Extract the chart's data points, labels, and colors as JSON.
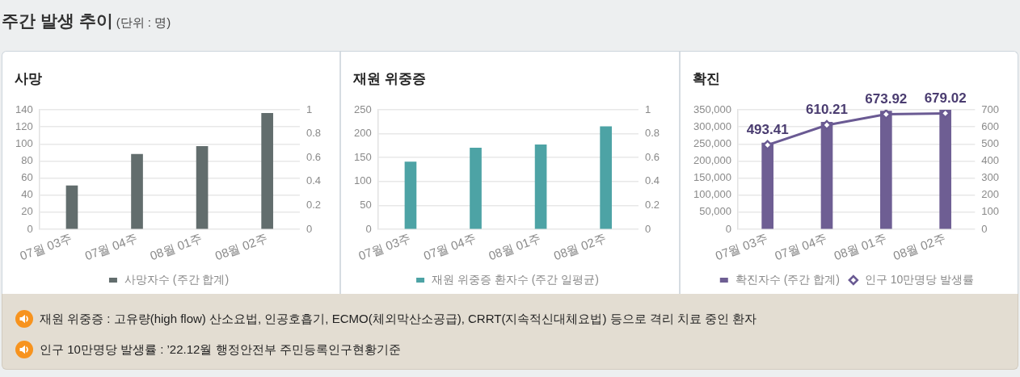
{
  "chart_data": [
    {
      "type": "other",
      "title": "주간 발생 추이",
      "subtitle": "(단위 : 명)"
    },
    {
      "type": "bar",
      "title": "사망",
      "categories": [
        "07월 03주",
        "07월 04주",
        "08월 01주",
        "08월 02주"
      ],
      "series": [
        {
          "name": "사망자수 (주간 합계)",
          "color": "#626d6d",
          "values": [
            51,
            88,
            97,
            136
          ]
        }
      ],
      "ylim": [
        0,
        140
      ],
      "yticks": [
        0,
        20,
        40,
        60,
        80,
        100,
        120,
        140
      ],
      "y2lim": [
        0,
        1
      ],
      "y2ticks": [
        0,
        0.2,
        0.4,
        0.6,
        0.8,
        1
      ],
      "grid": "y",
      "legend": "bottom"
    },
    {
      "type": "bar",
      "title": "재원 위중증",
      "categories": [
        "07월 03주",
        "07월 04주",
        "08월 01주",
        "08월 02주"
      ],
      "series": [
        {
          "name": "재원 위중증 환자수 (주간 일평균)",
          "color": "#4da3a5",
          "values": [
            141,
            170,
            177,
            215
          ]
        }
      ],
      "ylim": [
        0,
        250
      ],
      "yticks": [
        0,
        50,
        100,
        150,
        200,
        250
      ],
      "y2lim": [
        0,
        1
      ],
      "y2ticks": [
        0,
        0.2,
        0.4,
        0.6,
        0.8,
        1
      ],
      "grid": "y",
      "legend": "bottom"
    },
    {
      "type": "bar",
      "title": "확진",
      "categories": [
        "07월 03주",
        "07월 04주",
        "08월 01주",
        "08월 02주"
      ],
      "series": [
        {
          "name": "확진자수 (주간 합계)",
          "color": "#6e5e93",
          "values": [
            253000,
            314000,
            346000,
            349000
          ]
        },
        {
          "name": "인구 10만명당 발생률",
          "type": "line",
          "axis": "y2",
          "color": "#6a5a93",
          "marker": "diamond",
          "values": [
            493.41,
            610.21,
            673.92,
            679.02
          ],
          "value_labels": [
            "493.41",
            "610.21",
            "673.92",
            "679.02"
          ]
        }
      ],
      "ylim": [
        0,
        350000
      ],
      "yticks": [
        0,
        {
          "value": 50000,
          "label": "50,000"
        },
        {
          "value": 100000,
          "label": "100,000"
        },
        {
          "value": 150000,
          "label": "150,000"
        },
        {
          "value": 200000,
          "label": "200,000"
        },
        {
          "value": 250000,
          "label": "250,000"
        },
        {
          "value": 300000,
          "label": "300,000"
        },
        {
          "value": 350000,
          "label": "350,000"
        }
      ],
      "y2lim": [
        0,
        700
      ],
      "y2ticks": [
        0,
        100,
        200,
        300,
        400,
        500,
        600,
        700
      ],
      "grid": "y",
      "legend": "bottom"
    },
    {
      "type": "other",
      "annotations": [
        "재원 위중증 : 고유량(high flow) 산소요법, 인공호흡기, ECMO(체외막산소공급), CRRT(지속적신대체요법) 등으로 격리 치료 중인 환자",
        "인구 10만명당 발생률 : ’22.12월 행정안전부 주민등록인구현황기준"
      ]
    }
  ]
}
